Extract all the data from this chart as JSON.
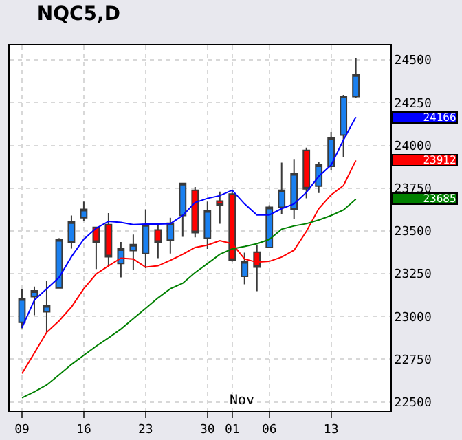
{
  "chart_data": {
    "type": "candlestick",
    "title": "NQC5,D",
    "categories": [
      "09",
      null,
      null,
      null,
      null,
      "16",
      null,
      null,
      null,
      null,
      "23",
      null,
      null,
      null,
      null,
      "30",
      null,
      "01",
      null,
      null,
      "06",
      null,
      null,
      null,
      null,
      "13",
      null,
      null
    ],
    "series": [
      {
        "colors": [
          "#1a80f0",
          "#1a80f0",
          "#1a80f0",
          "#1a80f0",
          "#1a80f0",
          "#1a80f0",
          "#ff0000",
          "#ff0000",
          "#1a80f0",
          "#1a80f0",
          "#1a80f0",
          "#ff0000",
          "#1a80f0",
          "#1a80f0",
          "#ff0000",
          "#1a80f0",
          "#ff0000",
          "#ff0000",
          "#1a80f0",
          "#ff0000",
          "#1a80f0",
          "#1a80f0",
          "#1a80f0",
          "#ff0000",
          "#1a80f0",
          "#1a80f0",
          "#1a80f0",
          "#1a80f0"
        ],
        "ohlc": [
          [
            22966,
            23162,
            22931,
            23103
          ],
          [
            23115,
            23175,
            23007,
            23150
          ],
          [
            23027,
            23210,
            22907,
            23063
          ],
          [
            23167,
            23457,
            23164,
            23449
          ],
          [
            23435,
            23590,
            23397,
            23553
          ],
          [
            23577,
            23671,
            23558,
            23626
          ],
          [
            23521,
            23525,
            23277,
            23433
          ],
          [
            23537,
            23604,
            23288,
            23349
          ],
          [
            23309,
            23435,
            23228,
            23395
          ],
          [
            23385,
            23478,
            23274,
            23420
          ],
          [
            23368,
            23626,
            23282,
            23537
          ],
          [
            23505,
            23537,
            23341,
            23433
          ],
          [
            23446,
            23577,
            23368,
            23545
          ],
          [
            23590,
            23778,
            23465,
            23778
          ],
          [
            23738,
            23757,
            23462,
            23489
          ],
          [
            23457,
            23671,
            23395,
            23618
          ],
          [
            23674,
            23730,
            23542,
            23650
          ],
          [
            23716,
            23738,
            23320,
            23328
          ],
          [
            23234,
            23373,
            23188,
            23320
          ],
          [
            23376,
            23417,
            23148,
            23288
          ],
          [
            23403,
            23650,
            23400,
            23638
          ],
          [
            23638,
            23899,
            23596,
            23738
          ],
          [
            23628,
            23917,
            23569,
            23835
          ],
          [
            23971,
            23987,
            23690,
            23746
          ],
          [
            23762,
            23904,
            23722,
            23885
          ],
          [
            23877,
            24078,
            23856,
            24044
          ],
          [
            24060,
            24295,
            23931,
            24287
          ],
          [
            24285,
            24512,
            24277,
            24413
          ]
        ]
      },
      {
        "type": "line",
        "color": "#0000ff",
        "values": [
          22934,
          23095,
          23162,
          23228,
          23349,
          23451,
          23515,
          23556,
          23550,
          23537,
          23540,
          23540,
          23542,
          23590,
          23666,
          23690,
          23706,
          23738,
          23658,
          23593,
          23593,
          23630,
          23658,
          23725,
          23819,
          23885,
          24032,
          24166
        ]
      },
      {
        "type": "line",
        "color": "#ff0000",
        "values": [
          22666,
          22786,
          22907,
          22974,
          23055,
          23162,
          23248,
          23296,
          23341,
          23336,
          23288,
          23296,
          23328,
          23363,
          23403,
          23417,
          23443,
          23425,
          23336,
          23317,
          23322,
          23347,
          23387,
          23497,
          23630,
          23711,
          23765,
          23912
        ]
      },
      {
        "type": "line",
        "color": "#008000",
        "values": [
          22524,
          22559,
          22599,
          22658,
          22719,
          22773,
          22826,
          22875,
          22926,
          22987,
          23047,
          23108,
          23162,
          23194,
          23256,
          23309,
          23363,
          23395,
          23409,
          23425,
          23450,
          23510,
          23529,
          23542,
          23564,
          23590,
          23622,
          23685
        ]
      }
    ],
    "ylim": [
      22446,
      24585
    ],
    "yticks": [
      22500,
      22750,
      23000,
      23250,
      23500,
      23750,
      24000,
      24250,
      24500
    ],
    "annotations": [
      "24166",
      "23912",
      "23685",
      "Nov"
    ],
    "grid": true,
    "marker": "none",
    "line_style": "solid"
  }
}
